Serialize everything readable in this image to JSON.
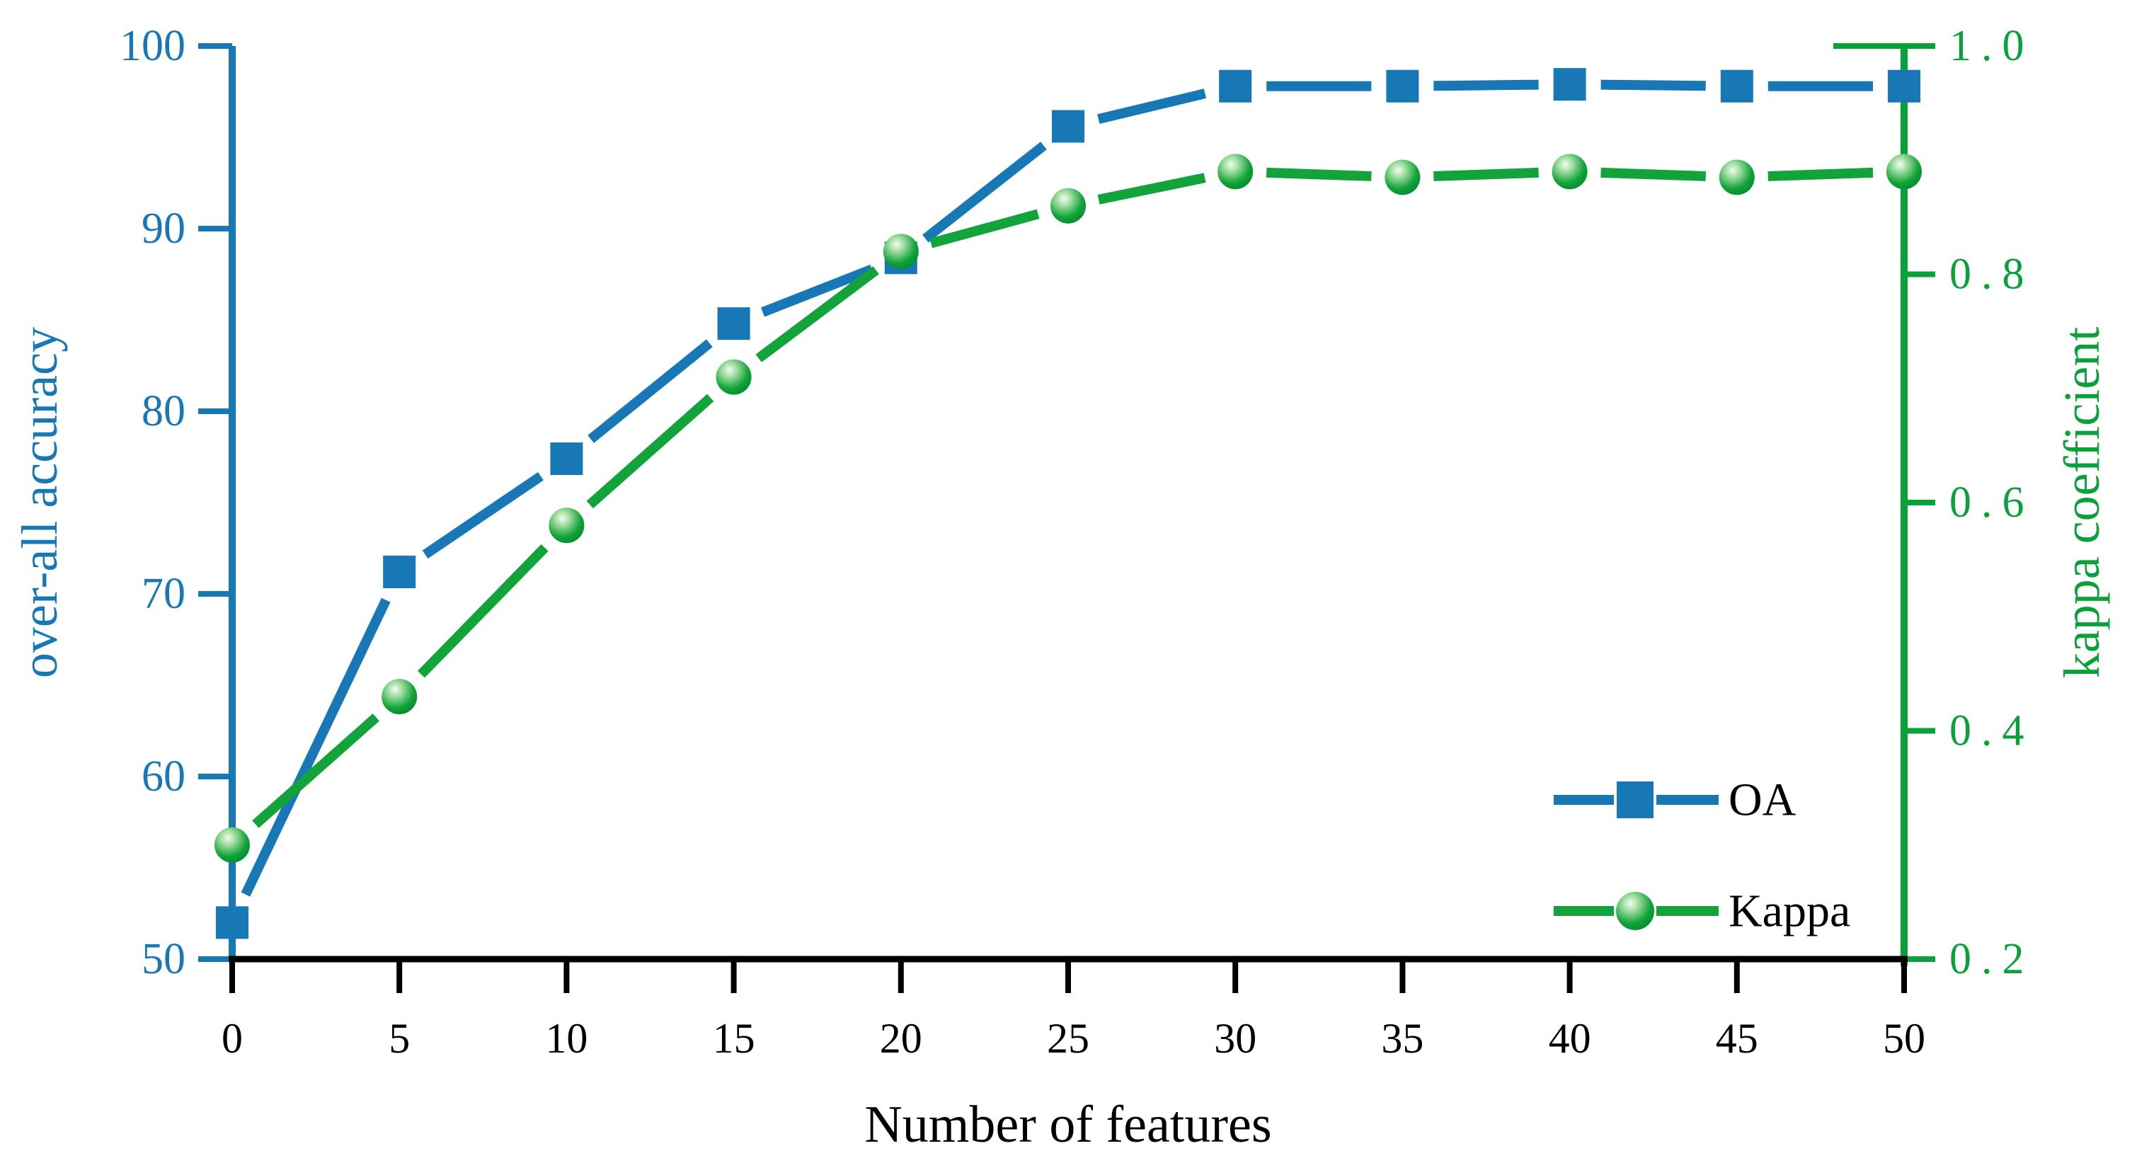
{
  "chart_data": {
    "type": "line",
    "title": "",
    "xlabel": "Number of features",
    "ylabel_left": "over-all accuracy",
    "ylabel_right": "kappa coefficient",
    "x": [
      0,
      5,
      10,
      15,
      20,
      25,
      30,
      35,
      40,
      45,
      50
    ],
    "x_tick_labels": [
      "0",
      "5",
      "10",
      "15",
      "20",
      "25",
      "30",
      "35",
      "40",
      "45",
      "50"
    ],
    "left_axis": {
      "range": [
        50,
        100
      ],
      "ticks": [
        50,
        60,
        70,
        80,
        90,
        100
      ],
      "tick_labels": [
        "50",
        "60",
        "70",
        "80",
        "90",
        "100"
      ],
      "color": "#1878b5"
    },
    "right_axis": {
      "range": [
        0.2,
        1.0
      ],
      "ticks": [
        0.2,
        0.4,
        0.6,
        0.8,
        1.0
      ],
      "tick_labels": [
        "0.2",
        "0.4",
        "0.6",
        "0.8",
        "1.0"
      ],
      "color": "#0aa13a"
    },
    "bottom_axis_color": "#000000",
    "grid": false,
    "legend": {
      "position": "lower-right",
      "entries": [
        "OA",
        "Kappa"
      ]
    },
    "series": [
      {
        "name": "OA",
        "axis": "left",
        "marker": "square",
        "color": "#1878b5",
        "values": [
          52.0,
          71.2,
          77.4,
          84.8,
          88.4,
          95.6,
          97.8,
          97.8,
          97.9,
          97.8,
          97.8
        ]
      },
      {
        "name": "Kappa",
        "axis": "right",
        "marker": "circle",
        "color": "#12a33a",
        "values": [
          0.3,
          0.43,
          0.58,
          0.71,
          0.82,
          0.86,
          0.89,
          0.885,
          0.89,
          0.885,
          0.89
        ]
      }
    ]
  }
}
